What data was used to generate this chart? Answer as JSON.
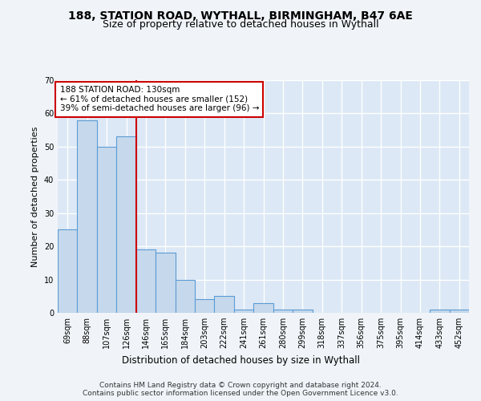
{
  "title1": "188, STATION ROAD, WYTHALL, BIRMINGHAM, B47 6AE",
  "title2": "Size of property relative to detached houses in Wythall",
  "xlabel": "Distribution of detached houses by size in Wythall",
  "ylabel": "Number of detached properties",
  "categories": [
    "69sqm",
    "88sqm",
    "107sqm",
    "126sqm",
    "146sqm",
    "165sqm",
    "184sqm",
    "203sqm",
    "222sqm",
    "241sqm",
    "261sqm",
    "280sqm",
    "299sqm",
    "318sqm",
    "337sqm",
    "356sqm",
    "375sqm",
    "395sqm",
    "414sqm",
    "433sqm",
    "452sqm"
  ],
  "values": [
    25,
    58,
    50,
    53,
    19,
    18,
    10,
    4,
    5,
    1,
    3,
    1,
    1,
    0,
    0,
    0,
    0,
    0,
    0,
    1,
    1
  ],
  "bar_color": "#c6d9ec",
  "bar_edge_color": "#5b9bd5",
  "background_color": "#dce8f5",
  "grid_color": "#ffffff",
  "annotation_text": "188 STATION ROAD: 130sqm\n← 61% of detached houses are smaller (152)\n39% of semi-detached houses are larger (96) →",
  "annotation_box_color": "#ffffff",
  "annotation_box_edge": "#cc0000",
  "vline_x": 3.5,
  "vline_color": "#cc0000",
  "ylim": [
    0,
    70
  ],
  "yticks": [
    0,
    10,
    20,
    30,
    40,
    50,
    60,
    70
  ],
  "footnote": "Contains HM Land Registry data © Crown copyright and database right 2024.\nContains public sector information licensed under the Open Government Licence v3.0.",
  "title1_fontsize": 10,
  "title2_fontsize": 9,
  "ylabel_fontsize": 8,
  "xlabel_fontsize": 8.5,
  "tick_fontsize": 7,
  "annot_fontsize": 7.5,
  "footnote_fontsize": 6.5,
  "fig_bg": "#f0f4f8"
}
